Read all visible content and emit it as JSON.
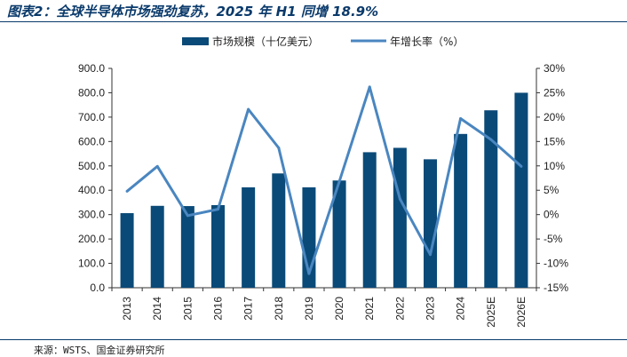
{
  "title": "图表2：全球半导体市场强劲复苏，2025 年 H1 同增 18.9%",
  "source": "来源：WSTS、国金证券研究所",
  "colors": {
    "bar": "#0a4a78",
    "line": "#4a86c0",
    "title": "#0a3a6b"
  },
  "chart_data": {
    "type": "bar+line",
    "categories": [
      "2013",
      "2014",
      "2015",
      "2016",
      "2017",
      "2018",
      "2019",
      "2020",
      "2021",
      "2022",
      "2023",
      "2024",
      "2025E",
      "2026E"
    ],
    "series": [
      {
        "name": "市场规模（十亿美元）",
        "type": "bar",
        "axis": "left",
        "values": [
          306,
          336,
          335,
          339,
          412,
          469,
          412,
          440,
          556,
          574,
          527,
          631,
          728,
          800
        ]
      },
      {
        "name": "年增长率（%）",
        "type": "line",
        "axis": "right",
        "values": [
          4.8,
          9.9,
          -0.2,
          1.1,
          21.6,
          13.7,
          -12.1,
          6.8,
          26.2,
          3.2,
          -8.2,
          19.7,
          15.4,
          9.9
        ]
      }
    ],
    "y_left": {
      "min": 0,
      "max": 900,
      "step": 100,
      "ticks": [
        "0.0",
        "100.0",
        "200.0",
        "300.0",
        "400.0",
        "500.0",
        "600.0",
        "700.0",
        "800.0",
        "900.0"
      ]
    },
    "y_right": {
      "min": -15,
      "max": 30,
      "step": 5,
      "ticks": [
        "-15%",
        "-10%",
        "-5%",
        "0%",
        "5%",
        "10%",
        "15%",
        "20%",
        "25%",
        "30%"
      ]
    },
    "legend_position": "top-center",
    "grid": false
  }
}
